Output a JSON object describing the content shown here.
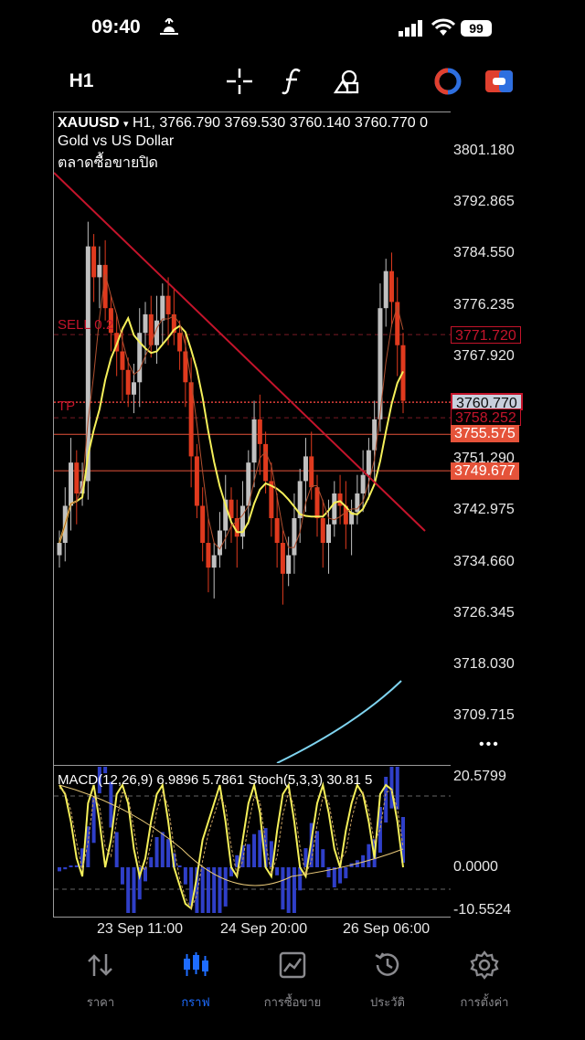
{
  "status_bar": {
    "time": "09:40",
    "battery": "99"
  },
  "toolbar": {
    "timeframe": "H1",
    "icons": [
      "crosshair-icon",
      "function-icon",
      "objects-icon",
      "trade-toggle-icon",
      "one-click-trading-icon"
    ]
  },
  "chart": {
    "symbol": "XAUUSD",
    "dropdown_glyph": "▾",
    "ohlc_line": "H1, 3766.790 3769.530 3760.140 3760.770 0",
    "description": "Gold vs US Dollar",
    "market_status": "ตลาดซื้อขายปิด",
    "sell_label": "SELL 0.2",
    "tp_label": "TP",
    "price_labels": [
      "3801.180",
      "3792.865",
      "3784.550",
      "3776.235",
      "3767.920",
      "3751.290",
      "3742.975",
      "3734.660",
      "3726.345",
      "3718.030",
      "3709.715"
    ],
    "tags": {
      "sell_price": "3771.720",
      "current_price": "3760.770",
      "tp_price": "3758.252",
      "level1": "3755.575",
      "level2": "3749.677"
    },
    "more_glyph": "•••",
    "colors": {
      "bull": "#c0c0c0",
      "bear": "#e03a1e",
      "ma_yellow": "#f5f05a",
      "trend": "#c4142b",
      "ma_blue": "#7fd4f0",
      "tag_orange": "#e5533a"
    }
  },
  "indicator": {
    "label": "MACD(12,26,9) 6.9896 5.7861 Stoch(5,3,3) 30.81 5",
    "scale": [
      "20.5799",
      "0.0000",
      "-10.5524"
    ]
  },
  "x_axis": [
    "23 Sep 11:00",
    "24 Sep 20:00",
    "26 Sep 06:00"
  ],
  "tabs": [
    {
      "label": "ราคา",
      "icon": "quotes-icon",
      "active": false
    },
    {
      "label": "กราฟ",
      "icon": "chart-candles-icon",
      "active": true
    },
    {
      "label": "การซื้อขาย",
      "icon": "trade-icon",
      "active": false
    },
    {
      "label": "ประวัติ",
      "icon": "history-icon",
      "active": false
    },
    {
      "label": "การตั้งค่า",
      "icon": "settings-gear-icon",
      "active": false
    }
  ]
}
